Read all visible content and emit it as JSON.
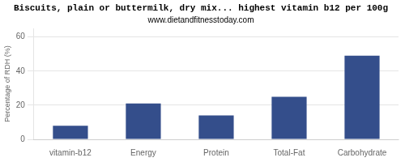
{
  "chart_data": {
    "type": "bar",
    "title": "Biscuits, plain or buttermilk, dry mix... highest vitamin b12 per 100g",
    "subtitle": "www.dietandfitnesstoday.com",
    "categories": [
      "vitamin-b12",
      "Energy",
      "Protein",
      "Total-Fat",
      "Carbohydrate"
    ],
    "values": [
      8,
      21,
      14,
      25,
      49
    ],
    "color": "#344E8B",
    "ylabel": "Percentage of RDH (%)",
    "ylim": [
      0,
      65
    ],
    "yticks": [
      0,
      20,
      40,
      60
    ],
    "grid": true
  }
}
